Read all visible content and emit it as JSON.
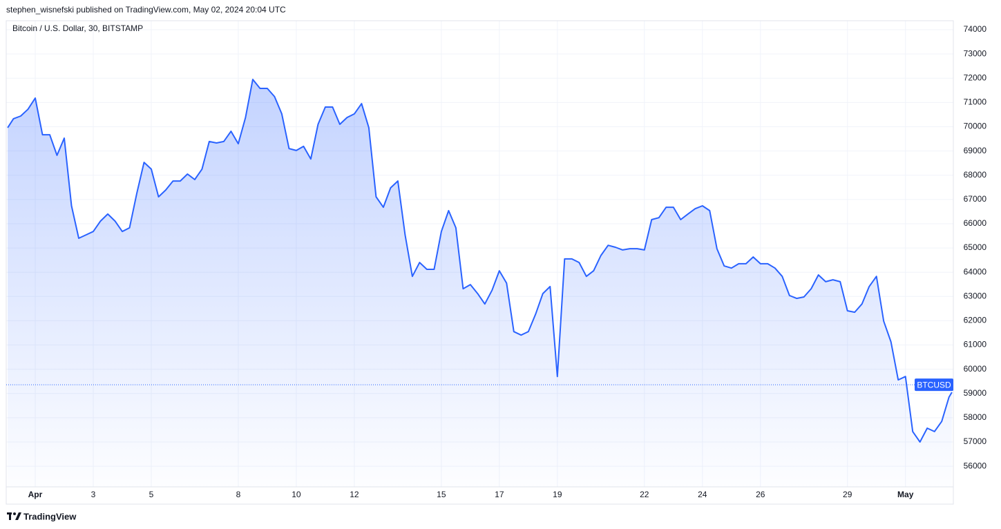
{
  "published": "stephen_wisnefski published on TradingView.com, May 02, 2024 20:04 UTC",
  "brand": "TradingView",
  "chart_data": {
    "type": "area",
    "title": "Bitcoin / U.S. Dollar, 30, BITSTAMP",
    "x": [
      0.05,
      0.25,
      0.5,
      0.75,
      1,
      1.25,
      1.5,
      1.75,
      2,
      2.25,
      2.5,
      2.75,
      3,
      3.25,
      3.5,
      3.75,
      4,
      4.25,
      4.5,
      4.75,
      5,
      5.25,
      5.5,
      5.75,
      6,
      6.25,
      6.5,
      6.75,
      7,
      7.25,
      7.5,
      7.75,
      8,
      8.25,
      8.5,
      8.75,
      9,
      9.25,
      9.5,
      9.75,
      10,
      10.25,
      10.5,
      10.75,
      11,
      11.25,
      11.5,
      11.75,
      12,
      12.25,
      12.5,
      12.75,
      13,
      13.25,
      13.5,
      13.75,
      14,
      14.25,
      14.5,
      14.75,
      15,
      15.25,
      15.5,
      15.75,
      16,
      16.25,
      16.5,
      16.75,
      17,
      17.25,
      17.5,
      17.75,
      18,
      18.25,
      18.5,
      18.75,
      19,
      19.25,
      19.5,
      19.75,
      20,
      20.25,
      20.5,
      20.75,
      21,
      21.25,
      21.5,
      21.75,
      22,
      22.25,
      22.5,
      22.75,
      23,
      23.25,
      23.5,
      23.75,
      24,
      24.25,
      24.5,
      24.75,
      25,
      25.25,
      25.5,
      25.75,
      26,
      26.25,
      26.5,
      26.75,
      27,
      27.25,
      27.5,
      27.75,
      28,
      28.25,
      28.5,
      28.75,
      29,
      29.25,
      29.5,
      29.75,
      30,
      30.25,
      30.5,
      30.75,
      31,
      31.25,
      31.5,
      31.75,
      32,
      32.25,
      32.5,
      32.6
    ],
    "series": [
      {
        "name": "BTCUSD",
        "color": "#2962ff",
        "values": [
          69960,
          70330,
          70440,
          70720,
          71180,
          69670,
          69670,
          68820,
          69530,
          66740,
          65400,
          65540,
          65680,
          66110,
          66400,
          66110,
          65680,
          65830,
          67250,
          68530,
          68250,
          67110,
          67390,
          67760,
          67760,
          68050,
          67820,
          68250,
          69390,
          69330,
          69390,
          69810,
          69300,
          70380,
          71950,
          71580,
          71580,
          71240,
          70530,
          69100,
          69020,
          69190,
          68670,
          70100,
          70810,
          70810,
          70100,
          70380,
          70530,
          70950,
          69960,
          67110,
          66680,
          67480,
          67760,
          65540,
          63830,
          64400,
          64120,
          64120,
          65680,
          66540,
          65830,
          63320,
          63490,
          63120,
          62690,
          63260,
          64060,
          63550,
          61550,
          61410,
          61550,
          62270,
          63120,
          63410,
          59700,
          64550,
          64550,
          64400,
          63830,
          64060,
          64690,
          65110,
          65030,
          64920,
          64970,
          64970,
          64920,
          66170,
          66250,
          66680,
          66680,
          66170,
          66400,
          66620,
          66740,
          66540,
          64970,
          64260,
          64170,
          64350,
          64350,
          64630,
          64350,
          64350,
          64170,
          63830,
          63040,
          62920,
          62980,
          63320,
          63890,
          63610,
          63690,
          63610,
          62410,
          62350,
          62690,
          63410,
          63830,
          61980,
          61130,
          59560,
          59700,
          57430,
          57000,
          57570,
          57430,
          57850,
          58850,
          59050
        ]
      }
    ],
    "last_price": 59360,
    "xlim": [
      0,
      32.65
    ],
    "xticks": [
      {
        "value": 1,
        "label": "Apr"
      },
      3,
      5,
      8,
      10,
      12,
      15,
      17,
      19,
      22,
      24,
      26,
      29,
      {
        "value": 31,
        "label": "May"
      }
    ],
    "ylim": [
      55150,
      74370
    ],
    "yticks": [
      56000,
      57000,
      58000,
      59000,
      60000,
      61000,
      62000,
      63000,
      64000,
      65000,
      66000,
      67000,
      68000,
      69000,
      70000,
      71000,
      72000,
      73000,
      74000
    ],
    "grid": true
  }
}
